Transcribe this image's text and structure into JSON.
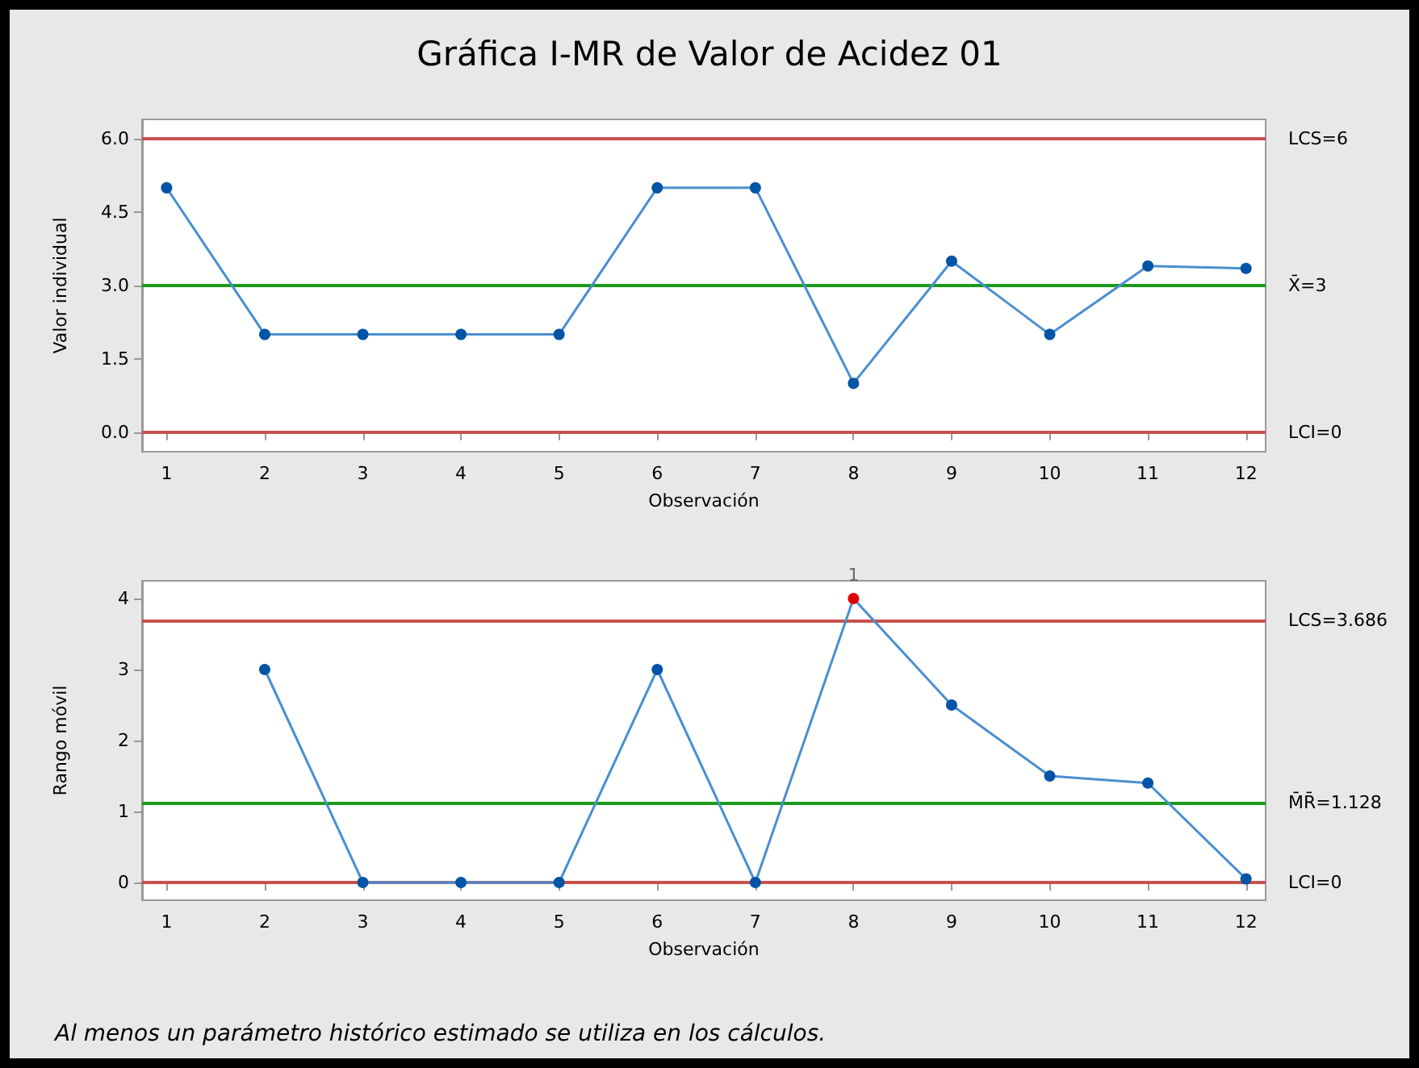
{
  "chart_data": [
    {
      "type": "line",
      "title": "Gráfica I-MR de Valor de Acidez 01",
      "xlabel": "Observación",
      "ylabel": "Valor individual",
      "x": [
        1,
        2,
        3,
        4,
        5,
        6,
        7,
        8,
        9,
        10,
        11,
        12
      ],
      "series": [
        {
          "color": "#0054a6",
          "values": [
            5,
            2,
            2,
            2,
            2,
            5,
            5,
            1,
            3.5,
            2,
            3.4,
            3.35
          ]
        }
      ],
      "xlim": [
        0.75,
        12.2
      ],
      "xticks": [
        1,
        2,
        3,
        4,
        5,
        6,
        7,
        8,
        9,
        10,
        11,
        12
      ],
      "ylim": [
        -0.4,
        6.4
      ],
      "yticks": [
        {
          "value": 0,
          "label": "0.0"
        },
        1.5,
        {
          "value": 3,
          "label": "3.0"
        },
        4.5,
        {
          "value": 6,
          "label": "6.0"
        }
      ],
      "ref_lines": [
        {
          "axis": "y",
          "value": 6,
          "label": "LCS=6",
          "color": "#c8504d"
        },
        {
          "axis": "y",
          "value": 3,
          "label": "X̄=3",
          "color": "#1a9a1a"
        },
        {
          "axis": "y",
          "value": 0,
          "label": "LCI=0",
          "color": "#c8504d"
        }
      ],
      "marker": "circle",
      "line_style": "solid"
    },
    {
      "type": "line",
      "xlabel": "Observación",
      "ylabel": "Rango móvil",
      "series": [
        {
          "color": "#0054a6",
          "x": [
            2,
            3,
            4,
            5,
            6,
            7,
            8,
            9,
            10,
            11,
            12
          ],
          "values": [
            3,
            0,
            0,
            0,
            3,
            0,
            4,
            2.5,
            1.5,
            1.4,
            0.05
          ],
          "colors": [
            "#0054a6",
            "#0054a6",
            "#0054a6",
            "#0054a6",
            "#0054a6",
            "#0054a6",
            "#e00000",
            "#0054a6",
            "#0054a6",
            "#0054a6",
            "#0054a6"
          ]
        }
      ],
      "xlim": [
        0.75,
        12.2
      ],
      "xticks": [
        1,
        2,
        3,
        4,
        5,
        6,
        7,
        8,
        9,
        10,
        11,
        12
      ],
      "ylim": [
        -0.25,
        4.25
      ],
      "yticks": [
        0,
        1,
        2,
        3,
        4
      ],
      "ref_lines": [
        {
          "axis": "y",
          "value": 3.686,
          "label": "LCS=3.686",
          "color": "#c8504d"
        },
        {
          "axis": "y",
          "value": 1.128,
          "label": "M̄R̄=1.128",
          "color": "#1a9a1a"
        },
        {
          "axis": "y",
          "value": 0,
          "label": "LCI=0",
          "color": "#c8504d"
        }
      ],
      "annotations": [
        {
          "text": "1",
          "x": 8,
          "y": 4
        },
        "Al menos un parámetro histórico estimado se utiliza en los cálculos."
      ],
      "marker": "circle",
      "line_style": "solid"
    }
  ]
}
